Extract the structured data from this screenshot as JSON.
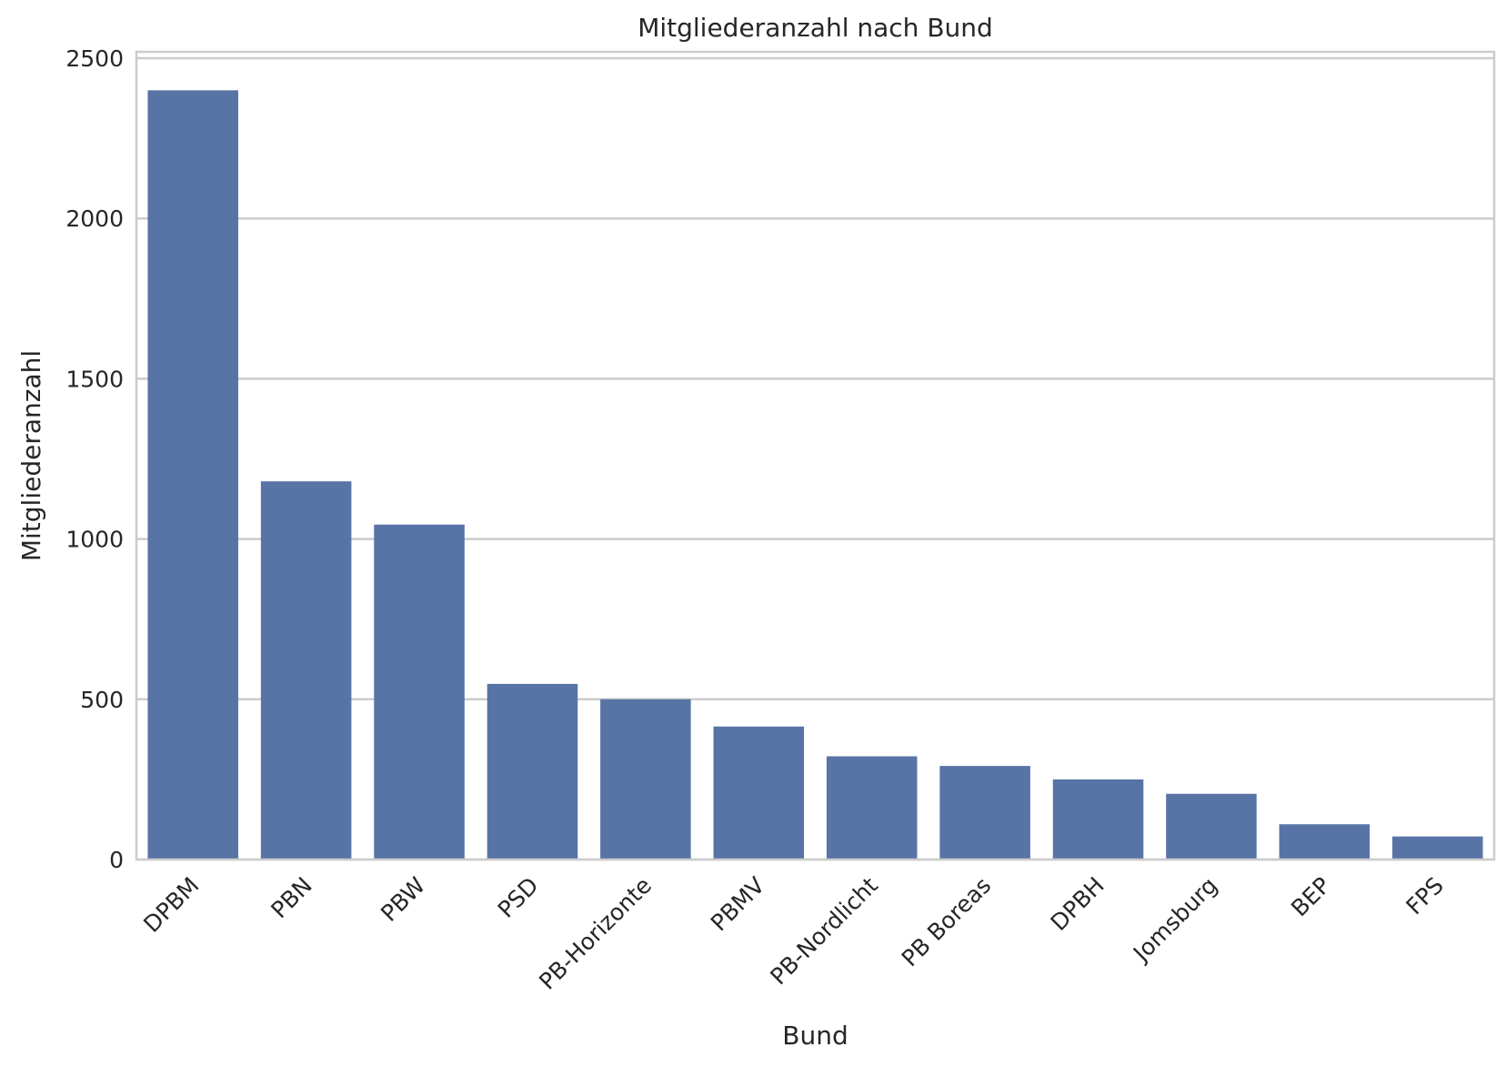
{
  "chart_data": {
    "type": "bar",
    "title": "Mitgliederanzahl nach Bund",
    "xlabel": "Bund",
    "ylabel": "Mitgliederanzahl",
    "categories": [
      "DPBM",
      "PBN",
      "PBW",
      "PSD",
      "PB-Horizonte",
      "PBMV",
      "PB-Nordlicht",
      "PB Boreas",
      "DPBH",
      "Jomsburg",
      "BEP",
      "FPS"
    ],
    "values": [
      2400,
      1180,
      1045,
      548,
      500,
      415,
      322,
      292,
      250,
      205,
      110,
      72
    ],
    "ylim": [
      0,
      2520
    ],
    "yticks": [
      0,
      500,
      1000,
      1500,
      2000,
      2500
    ],
    "ytick_labels": [
      "0",
      "500",
      "1000",
      "1500",
      "2000",
      "2500"
    ],
    "grid": "horizontal",
    "bar_color": "#5874a6",
    "grid_color": "#cccccc",
    "frame_color": "#cccccc",
    "tick_label_rotation": 45
  }
}
